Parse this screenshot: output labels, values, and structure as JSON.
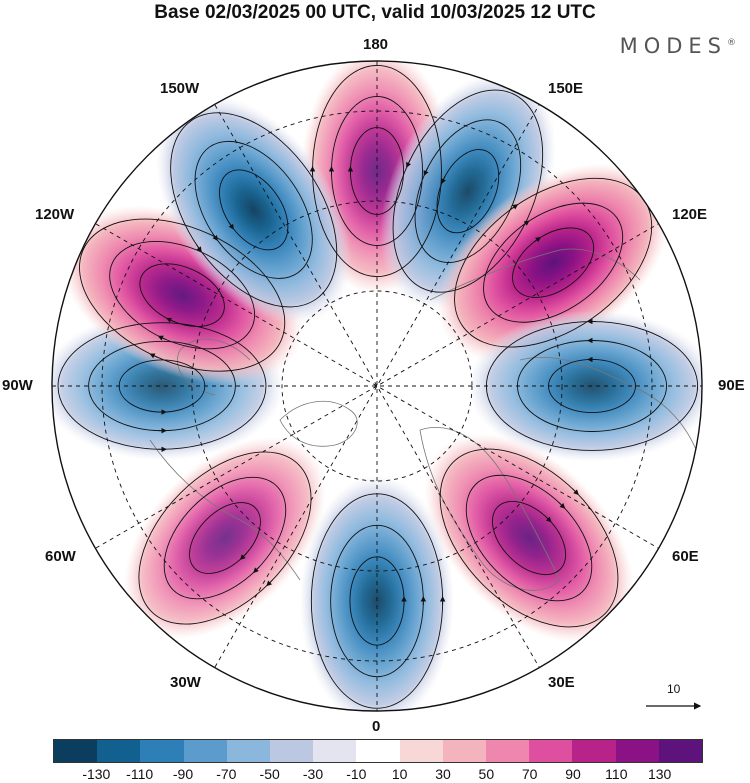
{
  "header": {
    "title": "Base 02/03/2025 00 UTC, valid 10/03/2025 12 UTC",
    "brand": "MODES",
    "brand_mark": "®"
  },
  "map": {
    "projection": "north-polar-stereographic",
    "longitude_labels": {
      "top": "180",
      "bottom": "0",
      "left": "90W",
      "right": "90E",
      "upper_left_1": "150W",
      "upper_left_2": "120W",
      "upper_right_1": "150E",
      "upper_right_2": "120E",
      "lower_left_1": "60W",
      "lower_left_2": "30W",
      "lower_right_1": "60E",
      "lower_right_2": "30E"
    },
    "reference_vector": "10",
    "anomalies": [
      {
        "lon_dir": 180,
        "sign": "positive",
        "strength": 100
      },
      {
        "lon_dir": 155,
        "sign": "negative",
        "strength": 110
      },
      {
        "lon_dir": 125,
        "sign": "positive",
        "strength": 130
      },
      {
        "lon_dir": 90,
        "sign": "negative",
        "strength": 100
      },
      {
        "lon_dir": 45,
        "sign": "positive",
        "strength": 110
      },
      {
        "lon_dir": 0,
        "sign": "negative",
        "strength": 110
      },
      {
        "lon_dir": -45,
        "sign": "positive",
        "strength": 90
      },
      {
        "lon_dir": -90,
        "sign": "negative",
        "strength": 90
      },
      {
        "lon_dir": -115,
        "sign": "positive",
        "strength": 120
      },
      {
        "lon_dir": -145,
        "sign": "negative",
        "strength": 120
      }
    ]
  },
  "colorbar": {
    "colors": [
      "#0b3d5e",
      "#12608f",
      "#2e7fb8",
      "#5b9ccc",
      "#8cb7dd",
      "#bcc8e2",
      "#e4e4f0",
      "#ffffff",
      "#f8d8d6",
      "#f4b4bd",
      "#ee86ad",
      "#df4f9f",
      "#b8238a",
      "#8b1284",
      "#5e127c"
    ],
    "ticks": [
      "-130",
      "-110",
      "-90",
      "-70",
      "-50",
      "-30",
      "-10",
      "10",
      "30",
      "50",
      "70",
      "90",
      "110",
      "130"
    ]
  }
}
